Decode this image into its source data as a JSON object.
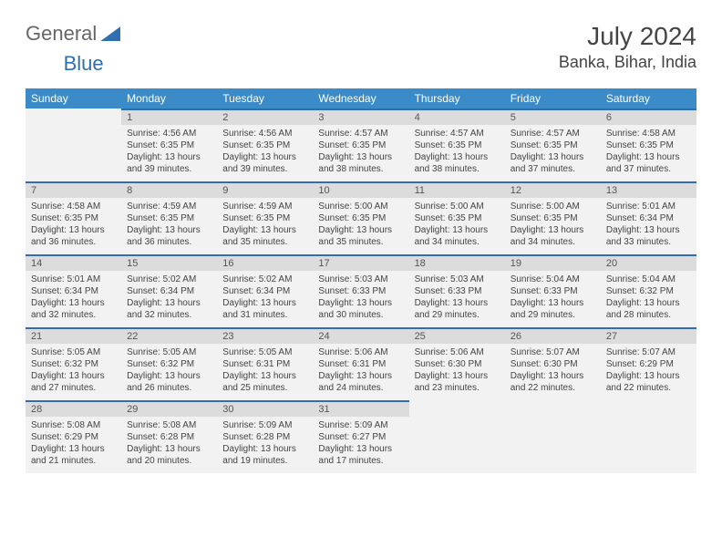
{
  "brand": {
    "general": "General",
    "blue": "Blue"
  },
  "title": "July 2024",
  "location": "Banka, Bihar, India",
  "colors": {
    "header_bg": "#3b8bc9",
    "daynum_bg": "#dcdcdc",
    "cell_bg": "#f2f2f2",
    "rule": "#2f6fae",
    "text": "#444444"
  },
  "weekdays": [
    "Sunday",
    "Monday",
    "Tuesday",
    "Wednesday",
    "Thursday",
    "Friday",
    "Saturday"
  ],
  "weeks": [
    [
      null,
      {
        "n": "1",
        "sr": "4:56 AM",
        "ss": "6:35 PM",
        "dl": "13 hours and 39 minutes."
      },
      {
        "n": "2",
        "sr": "4:56 AM",
        "ss": "6:35 PM",
        "dl": "13 hours and 39 minutes."
      },
      {
        "n": "3",
        "sr": "4:57 AM",
        "ss": "6:35 PM",
        "dl": "13 hours and 38 minutes."
      },
      {
        "n": "4",
        "sr": "4:57 AM",
        "ss": "6:35 PM",
        "dl": "13 hours and 38 minutes."
      },
      {
        "n": "5",
        "sr": "4:57 AM",
        "ss": "6:35 PM",
        "dl": "13 hours and 37 minutes."
      },
      {
        "n": "6",
        "sr": "4:58 AM",
        "ss": "6:35 PM",
        "dl": "13 hours and 37 minutes."
      }
    ],
    [
      {
        "n": "7",
        "sr": "4:58 AM",
        "ss": "6:35 PM",
        "dl": "13 hours and 36 minutes."
      },
      {
        "n": "8",
        "sr": "4:59 AM",
        "ss": "6:35 PM",
        "dl": "13 hours and 36 minutes."
      },
      {
        "n": "9",
        "sr": "4:59 AM",
        "ss": "6:35 PM",
        "dl": "13 hours and 35 minutes."
      },
      {
        "n": "10",
        "sr": "5:00 AM",
        "ss": "6:35 PM",
        "dl": "13 hours and 35 minutes."
      },
      {
        "n": "11",
        "sr": "5:00 AM",
        "ss": "6:35 PM",
        "dl": "13 hours and 34 minutes."
      },
      {
        "n": "12",
        "sr": "5:00 AM",
        "ss": "6:35 PM",
        "dl": "13 hours and 34 minutes."
      },
      {
        "n": "13",
        "sr": "5:01 AM",
        "ss": "6:34 PM",
        "dl": "13 hours and 33 minutes."
      }
    ],
    [
      {
        "n": "14",
        "sr": "5:01 AM",
        "ss": "6:34 PM",
        "dl": "13 hours and 32 minutes."
      },
      {
        "n": "15",
        "sr": "5:02 AM",
        "ss": "6:34 PM",
        "dl": "13 hours and 32 minutes."
      },
      {
        "n": "16",
        "sr": "5:02 AM",
        "ss": "6:34 PM",
        "dl": "13 hours and 31 minutes."
      },
      {
        "n": "17",
        "sr": "5:03 AM",
        "ss": "6:33 PM",
        "dl": "13 hours and 30 minutes."
      },
      {
        "n": "18",
        "sr": "5:03 AM",
        "ss": "6:33 PM",
        "dl": "13 hours and 29 minutes."
      },
      {
        "n": "19",
        "sr": "5:04 AM",
        "ss": "6:33 PM",
        "dl": "13 hours and 29 minutes."
      },
      {
        "n": "20",
        "sr": "5:04 AM",
        "ss": "6:32 PM",
        "dl": "13 hours and 28 minutes."
      }
    ],
    [
      {
        "n": "21",
        "sr": "5:05 AM",
        "ss": "6:32 PM",
        "dl": "13 hours and 27 minutes."
      },
      {
        "n": "22",
        "sr": "5:05 AM",
        "ss": "6:32 PM",
        "dl": "13 hours and 26 minutes."
      },
      {
        "n": "23",
        "sr": "5:05 AM",
        "ss": "6:31 PM",
        "dl": "13 hours and 25 minutes."
      },
      {
        "n": "24",
        "sr": "5:06 AM",
        "ss": "6:31 PM",
        "dl": "13 hours and 24 minutes."
      },
      {
        "n": "25",
        "sr": "5:06 AM",
        "ss": "6:30 PM",
        "dl": "13 hours and 23 minutes."
      },
      {
        "n": "26",
        "sr": "5:07 AM",
        "ss": "6:30 PM",
        "dl": "13 hours and 22 minutes."
      },
      {
        "n": "27",
        "sr": "5:07 AM",
        "ss": "6:29 PM",
        "dl": "13 hours and 22 minutes."
      }
    ],
    [
      {
        "n": "28",
        "sr": "5:08 AM",
        "ss": "6:29 PM",
        "dl": "13 hours and 21 minutes."
      },
      {
        "n": "29",
        "sr": "5:08 AM",
        "ss": "6:28 PM",
        "dl": "13 hours and 20 minutes."
      },
      {
        "n": "30",
        "sr": "5:09 AM",
        "ss": "6:28 PM",
        "dl": "13 hours and 19 minutes."
      },
      {
        "n": "31",
        "sr": "5:09 AM",
        "ss": "6:27 PM",
        "dl": "13 hours and 17 minutes."
      },
      null,
      null,
      null
    ]
  ],
  "labels": {
    "sunrise": "Sunrise:",
    "sunset": "Sunset:",
    "daylight": "Daylight:"
  }
}
